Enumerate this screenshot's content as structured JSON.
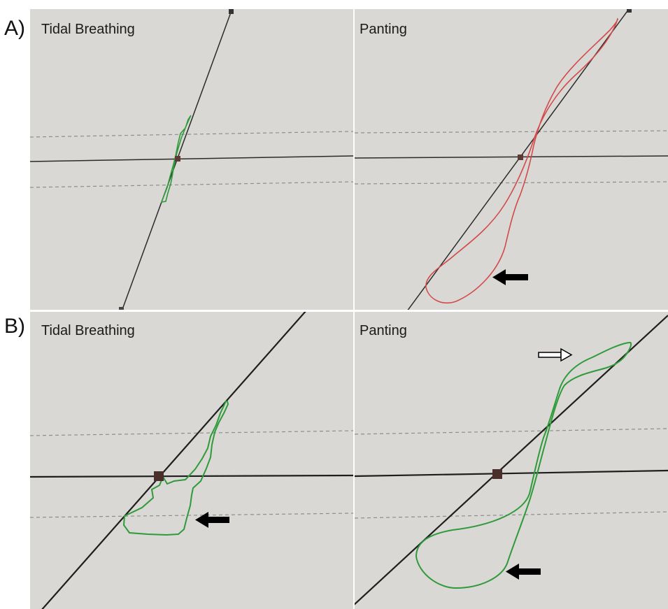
{
  "figure": {
    "row_a_label": "A)",
    "row_b_label": "B)",
    "panels": [
      {
        "id": "a-left",
        "title": "Tidal Breathing",
        "loop_color": "#2e9a3a",
        "arrows": []
      },
      {
        "id": "a-right",
        "title": "Panting",
        "loop_color": "#d24a4a",
        "arrows": [
          "solid-left-arrow"
        ]
      },
      {
        "id": "b-left",
        "title": "Tidal Breathing",
        "loop_color": "#2e9a3a",
        "arrows": [
          "solid-left-arrow"
        ]
      },
      {
        "id": "b-right",
        "title": "Panting",
        "loop_color": "#2e9a3a",
        "arrows": [
          "hollow-right-arrow",
          "solid-left-arrow"
        ]
      }
    ]
  },
  "colors": {
    "paper": "#d8d7d3",
    "axis_line": "#2b2b2b",
    "dashed_line": "#8a8a8a",
    "marker": "#6e3a34",
    "arrow": "#000000"
  }
}
